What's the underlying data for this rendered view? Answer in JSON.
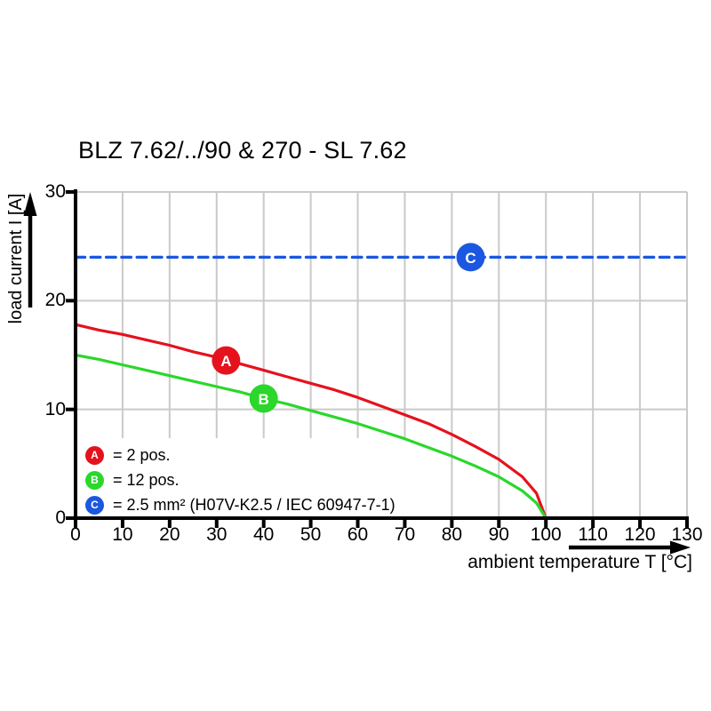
{
  "title": "BLZ 7.62/../90 & 270 - SL 7.62",
  "colors": {
    "curve_a_red": "#E5121D",
    "curve_b_green": "#2BD72B",
    "curve_c_blue": "#1B57E0",
    "grid": "#CACACA",
    "axis": "#000000",
    "background": "#FFFFFF",
    "marker_text": "#FFFFFF"
  },
  "chart_data": {
    "type": "line",
    "title": "BLZ 7.62/../90 & 270 - SL 7.62",
    "xlabel": "ambient temperature T [°C]",
    "ylabel": "load current I [A]",
    "xlim": [
      0,
      130
    ],
    "ylim": [
      0,
      30
    ],
    "x_ticks": [
      0,
      10,
      20,
      30,
      40,
      50,
      60,
      70,
      80,
      90,
      100,
      110,
      120,
      130
    ],
    "y_ticks": [
      0,
      10,
      20,
      30
    ],
    "grid": true,
    "legend_position": "inside-bottom-left",
    "series": [
      {
        "id": "A",
        "label": "= 2 pos.",
        "color": "#E5121D",
        "line_style": "solid",
        "marker_label_pos": {
          "x": 32,
          "y": 14.5
        },
        "points": [
          [
            0,
            17.8
          ],
          [
            5,
            17.3
          ],
          [
            10,
            16.9
          ],
          [
            15,
            16.4
          ],
          [
            20,
            15.9
          ],
          [
            25,
            15.3
          ],
          [
            30,
            14.8
          ],
          [
            35,
            14.2
          ],
          [
            40,
            13.6
          ],
          [
            45,
            13.0
          ],
          [
            50,
            12.4
          ],
          [
            55,
            11.8
          ],
          [
            60,
            11.1
          ],
          [
            65,
            10.3
          ],
          [
            70,
            9.5
          ],
          [
            75,
            8.7
          ],
          [
            80,
            7.7
          ],
          [
            85,
            6.6
          ],
          [
            90,
            5.4
          ],
          [
            95,
            3.8
          ],
          [
            98,
            2.3
          ],
          [
            100,
            0
          ]
        ]
      },
      {
        "id": "B",
        "label": "= 12 pos.",
        "color": "#2BD72B",
        "line_style": "solid",
        "marker_label_pos": {
          "x": 40,
          "y": 11
        },
        "points": [
          [
            0,
            15.0
          ],
          [
            5,
            14.6
          ],
          [
            10,
            14.1
          ],
          [
            15,
            13.6
          ],
          [
            20,
            13.1
          ],
          [
            25,
            12.6
          ],
          [
            30,
            12.1
          ],
          [
            35,
            11.6
          ],
          [
            40,
            11.0
          ],
          [
            45,
            10.5
          ],
          [
            50,
            9.9
          ],
          [
            55,
            9.3
          ],
          [
            60,
            8.7
          ],
          [
            65,
            8.0
          ],
          [
            70,
            7.3
          ],
          [
            75,
            6.5
          ],
          [
            80,
            5.7
          ],
          [
            85,
            4.8
          ],
          [
            90,
            3.8
          ],
          [
            95,
            2.5
          ],
          [
            98,
            1.4
          ],
          [
            100,
            0
          ]
        ]
      },
      {
        "id": "C",
        "label": "= 2.5 mm² (H07V-K2.5 / IEC 60947-7-1)",
        "color": "#1B57E0",
        "line_style": "dashed",
        "marker_label_pos": {
          "x": 84,
          "y": 24
        },
        "points": [
          [
            0,
            24
          ],
          [
            130,
            24
          ]
        ]
      }
    ]
  }
}
